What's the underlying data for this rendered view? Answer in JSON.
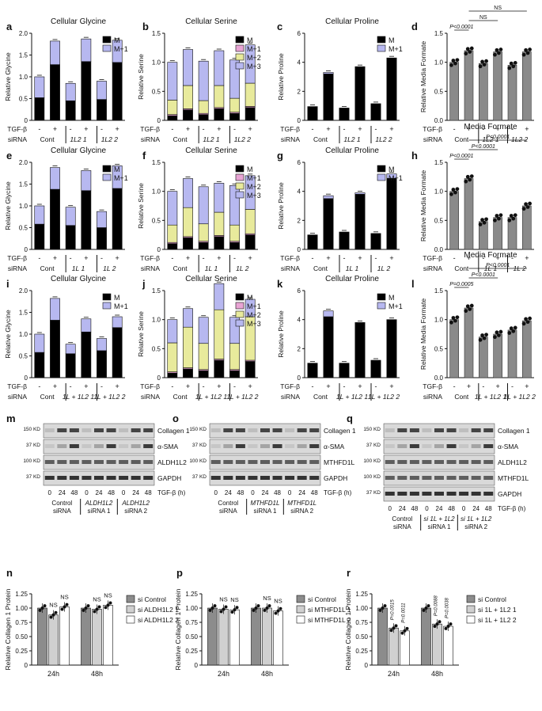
{
  "colors": {
    "M": "#000000",
    "M1": "#b7b8f0",
    "M2": "#e8ea9c",
    "M3": "#b7b8f0",
    "Mplus1_serine": "#e8a4d4",
    "formate": "#8a8a8a",
    "blot_bg": "#d9d9d9",
    "band": "#2a2a2a",
    "si_control": "#8c8c8c",
    "si_1": "#d0d0d0",
    "si_2": "#ffffff"
  },
  "rows": [
    {
      "letters": [
        "a",
        "b",
        "c",
        "d"
      ],
      "glycine": {
        "title": "Cellular Glycine",
        "ylabel": "Relative Glycine",
        "ylim": [
          0,
          2.0
        ],
        "ticks": [
          "0",
          "0.5",
          "1.0",
          "1.5",
          "2.0"
        ],
        "legend": [
          "M",
          "M+1"
        ],
        "M": [
          0.52,
          1.28,
          0.45,
          1.35,
          0.48,
          1.33
        ],
        "M1": [
          0.48,
          0.54,
          0.4,
          0.52,
          0.42,
          0.51
        ]
      },
      "serine": {
        "title": "Cellular Serine",
        "ylabel": "Relative Serine",
        "ylim": [
          0,
          1.5
        ],
        "ticks": [
          "0",
          "0.5",
          "1.0",
          "1.5"
        ],
        "legend": [
          "M",
          "M+1",
          "M+2",
          "M+3"
        ],
        "M": [
          0.08,
          0.18,
          0.1,
          0.2,
          0.12,
          0.22
        ],
        "M1": [
          0.02,
          0.02,
          0.02,
          0.02,
          0.02,
          0.02
        ],
        "M2": [
          0.25,
          0.4,
          0.22,
          0.38,
          0.24,
          0.4
        ],
        "M3": [
          0.65,
          0.62,
          0.68,
          0.6,
          0.66,
          0.66
        ]
      },
      "proline": {
        "title": "Cellular Proline",
        "ylabel": "Relative Proline",
        "ylim": [
          0,
          6
        ],
        "ticks": [
          "0",
          "2",
          "4",
          "6"
        ],
        "legend": [
          "M",
          "M+1"
        ],
        "M": [
          0.95,
          3.2,
          0.85,
          3.7,
          1.15,
          4.3
        ],
        "M1": [
          0,
          0.1,
          0,
          0,
          0,
          0
        ]
      },
      "formate": {
        "title": "Media Formate",
        "ylabel": "Relative Media Formate",
        "ylim": [
          0,
          1.5
        ],
        "ticks": [
          "0.0",
          "0.5",
          "1.0",
          "1.5"
        ],
        "values": [
          1.0,
          1.2,
          0.98,
          1.18,
          0.95,
          1.18
        ],
        "sig": [
          {
            "from": 0,
            "to": 1,
            "label": "P<0.0001",
            "level": 1
          },
          {
            "from": 1,
            "to": 3,
            "label": "NS",
            "level": 2
          },
          {
            "from": 1,
            "to": 5,
            "label": "NS",
            "level": 3
          }
        ]
      },
      "siRNA": [
        "Cont",
        "1L2 1",
        "1L2 2"
      ]
    },
    {
      "letters": [
        "e",
        "f",
        "g",
        "h"
      ],
      "glycine": {
        "title": "Cellular Glycine",
        "ylabel": "Relative Glycine",
        "ylim": [
          0,
          2.0
        ],
        "ticks": [
          "0",
          "0.5",
          "1.0",
          "1.5",
          "2.0"
        ],
        "legend": [
          "M",
          "M+1"
        ],
        "M": [
          0.58,
          1.38,
          0.55,
          1.35,
          0.5,
          1.4
        ],
        "M1": [
          0.42,
          0.5,
          0.42,
          0.46,
          0.37,
          0.52
        ]
      },
      "serine": {
        "title": "Cellular Serine",
        "ylabel": "Relative Serine",
        "ylim": [
          0,
          1.5
        ],
        "ticks": [
          "0",
          "0.5",
          "1.0",
          "1.5"
        ],
        "legend": [
          "M",
          "M+1",
          "M+2",
          "M+3"
        ],
        "M": [
          0.1,
          0.2,
          0.12,
          0.22,
          0.12,
          0.25
        ],
        "M1": [
          0.02,
          0.02,
          0.02,
          0.02,
          0.02,
          0.02
        ],
        "M2": [
          0.3,
          0.5,
          0.3,
          0.4,
          0.28,
          0.42
        ],
        "M3": [
          0.58,
          0.5,
          0.64,
          0.5,
          0.68,
          0.58
        ]
      },
      "proline": {
        "title": "Cellular Proline",
        "ylabel": "Relative Proline",
        "ylim": [
          0,
          6
        ],
        "ticks": [
          "0",
          "2",
          "4",
          "6"
        ],
        "legend": [
          "M",
          "M+1"
        ],
        "M": [
          1.0,
          3.5,
          1.2,
          3.8,
          1.1,
          4.9
        ],
        "M1": [
          0,
          0.2,
          0,
          0.1,
          0,
          0.3
        ]
      },
      "formate": {
        "title": "Media Formate",
        "ylabel": "Relative Media Formate",
        "ylim": [
          0,
          1.5
        ],
        "ticks": [
          "0.0",
          "0.5",
          "1.0",
          "1.5"
        ],
        "values": [
          1.0,
          1.22,
          0.48,
          0.55,
          0.55,
          0.75
        ],
        "sig": [
          {
            "from": 0,
            "to": 1,
            "label": "P<0.0001",
            "level": 1
          },
          {
            "from": 1,
            "to": 3,
            "label": "P<0.0001",
            "level": 2
          },
          {
            "from": 1,
            "to": 5,
            "label": "P<0.0001",
            "level": 3
          }
        ]
      },
      "siRNA": [
        "Cont",
        "1L 1",
        "1L 2"
      ]
    },
    {
      "letters": [
        "i",
        "j",
        "k",
        "l"
      ],
      "glycine": {
        "title": "Cellular Glycine",
        "ylabel": "Relative Glycine",
        "ylim": [
          0,
          2.0
        ],
        "ticks": [
          "0",
          "0.5",
          "1.0",
          "1.5",
          "2.0"
        ],
        "legend": [
          "M",
          "M+1"
        ],
        "M": [
          0.58,
          1.32,
          0.55,
          1.05,
          0.62,
          1.15
        ],
        "M1": [
          0.42,
          0.5,
          0.22,
          0.3,
          0.28,
          0.25
        ]
      },
      "serine": {
        "title": "Cellular Serine",
        "ylabel": "Relative Serine",
        "ylim": [
          0,
          1.5
        ],
        "ticks": [
          "0",
          "0.5",
          "1.0",
          "1.5"
        ],
        "legend": [
          "M",
          "M+1",
          "M+2",
          "M+3"
        ],
        "M": [
          0.08,
          0.15,
          0.12,
          0.3,
          0.12,
          0.28
        ],
        "M1": [
          0.02,
          0.02,
          0.02,
          0.02,
          0.02,
          0.02
        ],
        "M2": [
          0.5,
          0.7,
          0.45,
          0.85,
          0.45,
          0.75
        ],
        "M3": [
          0.4,
          0.32,
          0.45,
          0.45,
          0.45,
          0.3
        ]
      },
      "proline": {
        "title": "Cellular Proline",
        "ylabel": "Relative Proline",
        "ylim": [
          0,
          6
        ],
        "ticks": [
          "0",
          "2",
          "4",
          "6"
        ],
        "legend": [
          "M",
          "M+1"
        ],
        "M": [
          1.0,
          4.2,
          1.0,
          3.8,
          1.2,
          4.0
        ],
        "M1": [
          0,
          0.4,
          0,
          0,
          0,
          0
        ]
      },
      "formate": {
        "title": "Media Formate",
        "ylabel": "Relative Media Formate",
        "ylim": [
          0,
          1.5
        ],
        "ticks": [
          "0.0",
          "0.5",
          "1.0",
          "1.5"
        ],
        "values": [
          1.0,
          1.2,
          0.7,
          0.75,
          0.82,
          0.98
        ],
        "sig": [
          {
            "from": 0,
            "to": 1,
            "label": "P=0.0005",
            "level": 1
          },
          {
            "from": 1,
            "to": 3,
            "label": "P<0.0001",
            "level": 2
          },
          {
            "from": 1,
            "to": 5,
            "label": "P<0.0001",
            "level": 3
          }
        ]
      },
      "siRNA": [
        "Cont",
        "1L + 1L2 1",
        "1L + 1L2 2"
      ]
    }
  ],
  "axis_labels": {
    "tgf": "TGF-β",
    "sirna": "siRNA",
    "minus": "-",
    "plus": "+"
  },
  "blots": [
    {
      "letter": "m",
      "proteins": [
        "Collagen 1",
        "α-SMA",
        "ALDH1L2",
        "GAPDH"
      ],
      "kd": [
        "150 KD",
        "37 KD",
        "100 KD",
        "37 KD"
      ],
      "times": [
        "0",
        "24",
        "48",
        "0",
        "24",
        "48",
        "0",
        "24",
        "48"
      ],
      "time_label": "TGF-β (h)",
      "groups": [
        [
          "Control",
          "siRNA"
        ],
        [
          "ALDH1L2",
          "siRNA 1"
        ],
        [
          "ALDH1L2",
          "siRNA 2"
        ]
      ]
    },
    {
      "letter": "o",
      "proteins": [
        "Collagen 1",
        "α-SMA",
        "MTHFD1L",
        "GAPDH"
      ],
      "kd": [
        "150 KD",
        "37 KD",
        "100 KD",
        "37 KD"
      ],
      "times": [
        "0",
        "24",
        "48",
        "0",
        "24",
        "48",
        "0",
        "24",
        "48"
      ],
      "time_label": "TGF-β (h)",
      "groups": [
        [
          "Control",
          "siRNA"
        ],
        [
          "MTHFD1L",
          "siRNA 1"
        ],
        [
          "MTHFD1L",
          "siRNA 2"
        ]
      ]
    },
    {
      "letter": "q",
      "proteins": [
        "Collagen 1",
        "α-SMA",
        "ALDH1L2",
        "MTHFD1L",
        "GAPDH"
      ],
      "kd": [
        "150 KD",
        "37 KD",
        "100 KD",
        "100 KD",
        "37 KD"
      ],
      "times": [
        "0",
        "24",
        "48",
        "0",
        "24",
        "48",
        "0",
        "24",
        "48"
      ],
      "time_label": "TGF-β (h)",
      "groups": [
        [
          "Control",
          "siRNA"
        ],
        [
          "si 1L + 1L2",
          "siRNA 1"
        ],
        [
          "si 1L + 1L2",
          "siRNA 2"
        ]
      ]
    }
  ],
  "chart_data": [
    {
      "type": "bar",
      "panel": "n",
      "ylabel": "Relative Collagen 1 Protein",
      "ylim": [
        0,
        1.25
      ],
      "ticks": [
        "0",
        "0.25",
        "0.50",
        "0.75",
        "1.00",
        "1.25"
      ],
      "categories": [
        "24h",
        "48h"
      ],
      "series": [
        {
          "name": "si Control",
          "values": [
            1.0,
            1.0
          ]
        },
        {
          "name": "si ALDH1L2 1",
          "values": [
            0.88,
            0.98
          ]
        },
        {
          "name": "si ALDH1L2 2",
          "values": [
            1.02,
            1.05
          ]
        }
      ],
      "annotations": [
        [
          "NS",
          "NS"
        ],
        [
          "NS",
          "NS"
        ]
      ]
    },
    {
      "type": "bar",
      "panel": "p",
      "ylabel": "Relative Collagen 1 Protein",
      "ylim": [
        0,
        1.25
      ],
      "ticks": [
        "0",
        "0.25",
        "0.50",
        "0.75",
        "1.00",
        "1.25"
      ],
      "categories": [
        "24h",
        "48h"
      ],
      "series": [
        {
          "name": "si Control",
          "values": [
            1.0,
            1.0
          ]
        },
        {
          "name": "si MTHFD1L 1",
          "values": [
            0.98,
            1.0
          ]
        },
        {
          "name": "si MTHFD1L 2",
          "values": [
            0.97,
            0.95
          ]
        }
      ],
      "annotations": [
        [
          "NS",
          "NS"
        ],
        [
          "NS",
          "NS"
        ]
      ]
    },
    {
      "type": "bar",
      "panel": "r",
      "ylabel": "Relative Collagen 1 Protein",
      "ylim": [
        0,
        1.25
      ],
      "ticks": [
        "0",
        "0.25",
        "0.50",
        "0.75",
        "1.00",
        "1.25"
      ],
      "categories": [
        "24h",
        "48h"
      ],
      "series": [
        {
          "name": "si Control",
          "values": [
            1.0,
            1.0
          ]
        },
        {
          "name": "si 1L + 1L2 1",
          "values": [
            0.65,
            0.72
          ]
        },
        {
          "name": "si 1L + 1L2 2",
          "values": [
            0.6,
            0.68
          ]
        }
      ],
      "annotations": [
        [
          "P=0.0015",
          "P=0.0011"
        ],
        [
          "P=0.0088",
          "P=0.0038"
        ]
      ]
    }
  ]
}
